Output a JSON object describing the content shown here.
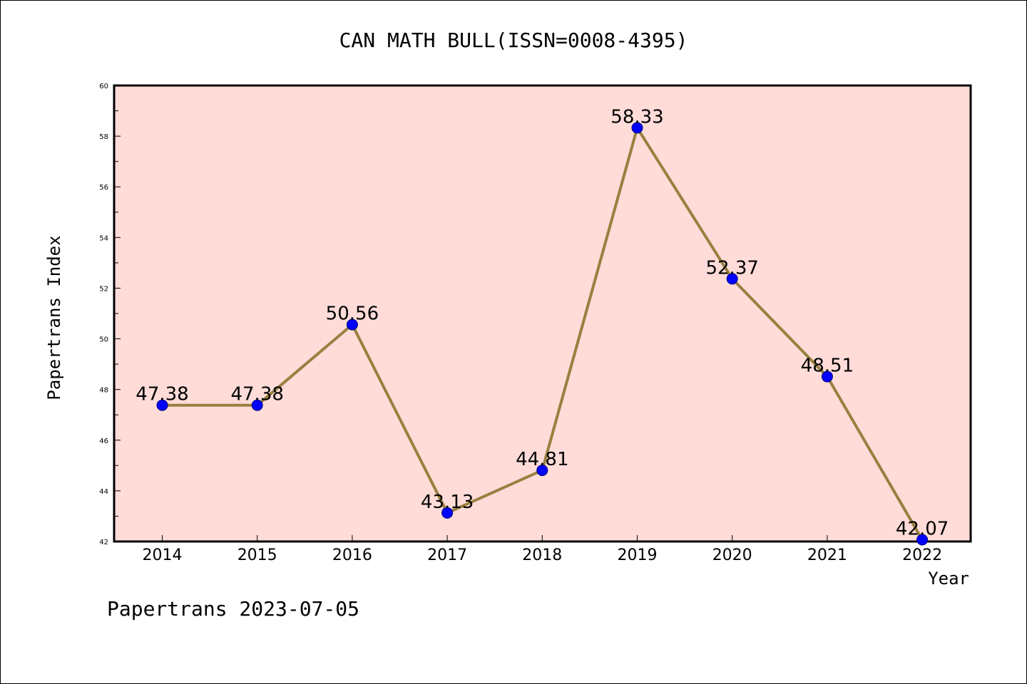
{
  "chart_data": {
    "type": "line",
    "title": "CAN MATH BULL(ISSN=0008-4395)",
    "xlabel": "Year",
    "ylabel": "Papertrans Index",
    "categories": [
      "2014",
      "2015",
      "2016",
      "2017",
      "2018",
      "2019",
      "2020",
      "2021",
      "2022"
    ],
    "series": [
      {
        "values": [
          47.38,
          47.38,
          50.56,
          43.13,
          44.81,
          58.33,
          52.37,
          48.51,
          42.07
        ]
      }
    ],
    "data_labels": [
      "47.38",
      "47.38",
      "50.56",
      "43.13",
      "44.81",
      "58.33",
      "52.37",
      "48.51",
      "42.07"
    ],
    "ylim": [
      42,
      60
    ],
    "yticks": [
      "42",
      "44",
      "46",
      "48",
      "50",
      "52",
      "54",
      "56",
      "58",
      "60"
    ],
    "plot_background": "#ffdcd8",
    "line_color": "#9a8040",
    "marker_color": "#0000ff",
    "grid": false,
    "legend": "none"
  },
  "footer": "Papertrans 2023-07-05"
}
